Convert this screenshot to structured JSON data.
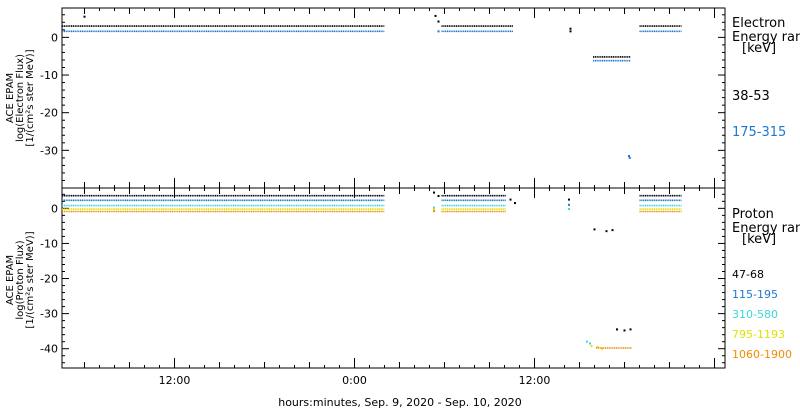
{
  "xlabel": "hours:minutes, Sep.  9, 2020 - Sep. 10, 2020",
  "x_ticks": [
    "12:00",
    "0:00",
    "12:00"
  ],
  "chart_data": [
    {
      "type": "scatter",
      "ylabel_lines": [
        "ACE EPAM",
        "log(Electron Flux)",
        "[1/(cm²s ster MeV)]"
      ],
      "y_ticks": [
        0,
        -10,
        -20,
        -30
      ],
      "legend_title_lines": [
        "Electron",
        "Energy ranges",
        "[keV]"
      ],
      "series": [
        {
          "name": "38-53",
          "color": "#000000",
          "segments": [
            {
              "from": 0.0,
              "to": 21.5,
              "y": 3.0
            },
            {
              "from": 25.3,
              "to": 30.1,
              "y": 3.0
            },
            {
              "from": 35.4,
              "to": 37.9,
              "y": -5.2
            },
            {
              "from": 38.5,
              "to": 41.3,
              "y": 3.0
            }
          ],
          "points": [
            [
              1.5,
              5.5
            ],
            [
              24.9,
              5.7
            ],
            [
              25.1,
              4.2
            ],
            [
              33.9,
              2.3
            ],
            [
              33.9,
              1.6
            ]
          ]
        },
        {
          "name": "175-315",
          "color": "#1e78d2",
          "segments": [
            {
              "from": 0.0,
              "to": 21.5,
              "y": 1.6
            },
            {
              "from": 25.3,
              "to": 30.1,
              "y": 1.6
            },
            {
              "from": 35.4,
              "to": 37.9,
              "y": -6.2
            },
            {
              "from": 38.5,
              "to": 41.3,
              "y": 1.6
            }
          ],
          "points": [
            [
              25.1,
              1.6
            ],
            [
              37.8,
              -31.5
            ],
            [
              37.85,
              -32.0
            ]
          ]
        }
      ]
    },
    {
      "type": "scatter",
      "ylabel_lines": [
        "ACE EPAM",
        "log(Proton Flux)",
        "[1/(cm²s ster MeV)]"
      ],
      "y_ticks": [
        0,
        -10,
        -20,
        -30,
        -40
      ],
      "legend_title_lines": [
        "Proton",
        "Energy ranges",
        "[keV]"
      ],
      "series": [
        {
          "name": "47-68",
          "color": "#000000",
          "segments": [
            {
              "from": 0.0,
              "to": 21.5,
              "y": 3.6
            },
            {
              "from": 25.3,
              "to": 29.6,
              "y": 3.6
            },
            {
              "from": 38.5,
              "to": 41.3,
              "y": 3.6
            }
          ],
          "points": [
            [
              24.8,
              4.5
            ],
            [
              25.1,
              3.5
            ],
            [
              29.9,
              2.5
            ],
            [
              30.2,
              1.5
            ],
            [
              33.8,
              2.5
            ],
            [
              35.5,
              -6.0
            ],
            [
              36.3,
              -6.5
            ],
            [
              36.7,
              -6.2
            ],
            [
              37.0,
              -34.5
            ],
            [
              37.5,
              -34.8
            ],
            [
              37.9,
              -34.5
            ]
          ]
        },
        {
          "name": "115-195",
          "color": "#1e78d2",
          "segments": [
            {
              "from": 0.0,
              "to": 21.5,
              "y": 2.3
            },
            {
              "from": 25.3,
              "to": 29.6,
              "y": 2.3
            },
            {
              "from": 38.5,
              "to": 41.3,
              "y": 2.3
            }
          ],
          "points": [
            [
              33.8,
              1.0
            ]
          ]
        },
        {
          "name": "310-580",
          "color": "#3dd7d7",
          "segments": [
            {
              "from": 0.0,
              "to": 21.5,
              "y": 0.8
            },
            {
              "from": 25.3,
              "to": 29.6,
              "y": 0.8
            },
            {
              "from": 38.5,
              "to": 41.3,
              "y": 0.8
            }
          ],
          "points": [
            [
              24.8,
              0.2
            ],
            [
              33.8,
              -0.2
            ],
            [
              35.0,
              -38.0
            ],
            [
              35.2,
              -38.5
            ]
          ]
        },
        {
          "name": "795-1193",
          "color": "#e1e100",
          "segments": [
            {
              "from": 0.0,
              "to": 21.5,
              "y": -0.2
            },
            {
              "from": 25.3,
              "to": 29.6,
              "y": -0.2
            },
            {
              "from": 38.5,
              "to": 41.3,
              "y": -0.2
            }
          ],
          "points": [
            [
              24.8,
              -0.3
            ],
            [
              35.3,
              -39.2
            ],
            [
              35.7,
              -39.5
            ],
            [
              36.0,
              -40.0
            ]
          ]
        },
        {
          "name": "1060-1900",
          "color": "#f08c00",
          "segments": [
            {
              "from": 0.0,
              "to": 21.5,
              "y": -0.9
            },
            {
              "from": 25.3,
              "to": 29.6,
              "y": -0.9
            },
            {
              "from": 35.6,
              "to": 38.0,
              "y": -39.8
            },
            {
              "from": 38.5,
              "to": 41.3,
              "y": -0.9
            }
          ],
          "points": [
            [
              24.8,
              -0.8
            ]
          ]
        }
      ]
    }
  ]
}
